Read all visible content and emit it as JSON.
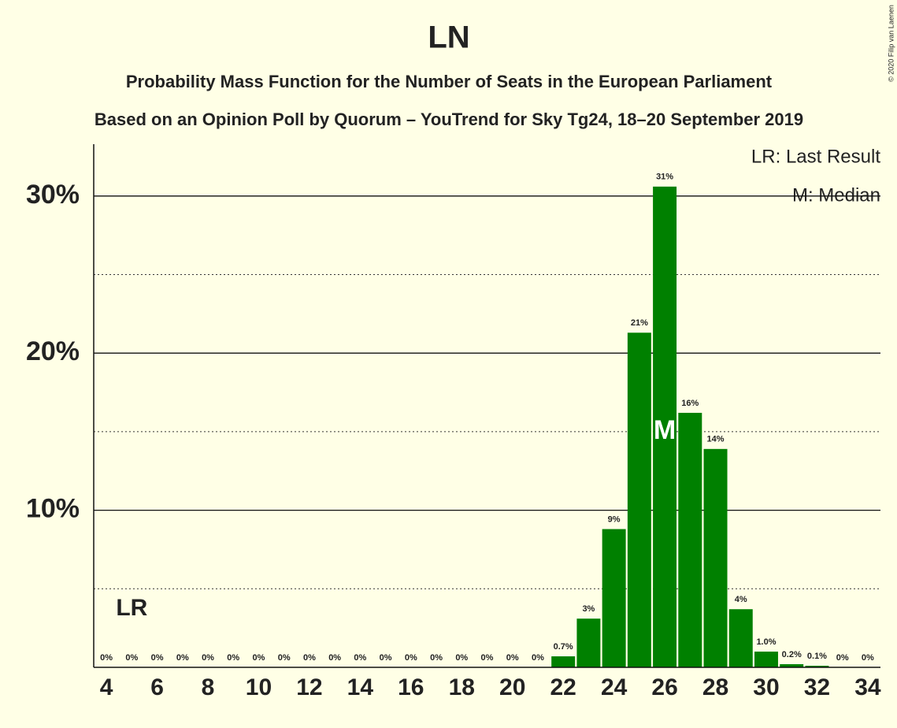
{
  "chart_data": {
    "type": "bar",
    "title": "LN",
    "subtitle": "Probability Mass Function for the Number of Seats in the European Parliament",
    "subtitle2": "Based on an Opinion Poll by Quorum – YouTrend for Sky Tg24, 18–20 September 2019",
    "copyright": "© 2020 Filip van Laenen",
    "legend": [
      "LR: Last Result",
      "M: Median"
    ],
    "last_result": 5,
    "last_result_label": "LR",
    "median": 26,
    "median_label": "M",
    "x": [
      4,
      5,
      6,
      7,
      8,
      9,
      10,
      11,
      12,
      13,
      14,
      15,
      16,
      17,
      18,
      19,
      20,
      21,
      22,
      23,
      24,
      25,
      26,
      27,
      28,
      29,
      30,
      31,
      32,
      33,
      34
    ],
    "values": [
      0,
      0,
      0,
      0,
      0,
      0,
      0,
      0,
      0,
      0,
      0,
      0,
      0,
      0,
      0,
      0,
      0,
      0,
      0.7,
      3.1,
      8.8,
      21.3,
      30.6,
      16.2,
      13.9,
      3.7,
      1.0,
      0.2,
      0.1,
      0,
      0
    ],
    "value_labels": [
      "0%",
      "0%",
      "0%",
      "0%",
      "0%",
      "0%",
      "0%",
      "0%",
      "0%",
      "0%",
      "0%",
      "0%",
      "0%",
      "0%",
      "0%",
      "0%",
      "0%",
      "0%",
      "0.7%",
      "3%",
      "9%",
      "21%",
      "31%",
      "16%",
      "14%",
      "4%",
      "1.0%",
      "0.2%",
      "0.1%",
      "0%",
      "0%"
    ],
    "color": "#008000",
    "xlim": [
      3.5,
      34.5
    ],
    "xticks": [
      4,
      6,
      8,
      10,
      12,
      14,
      16,
      18,
      20,
      22,
      24,
      26,
      28,
      30,
      32,
      34
    ],
    "ylim": [
      0,
      33.3
    ],
    "yticks": [
      {
        "value": 10,
        "label": "10%"
      },
      {
        "value": 20,
        "label": "20%"
      },
      {
        "value": 30,
        "label": "30%"
      }
    ],
    "minor_yticks": [
      5,
      15,
      25
    ],
    "grid": true
  }
}
